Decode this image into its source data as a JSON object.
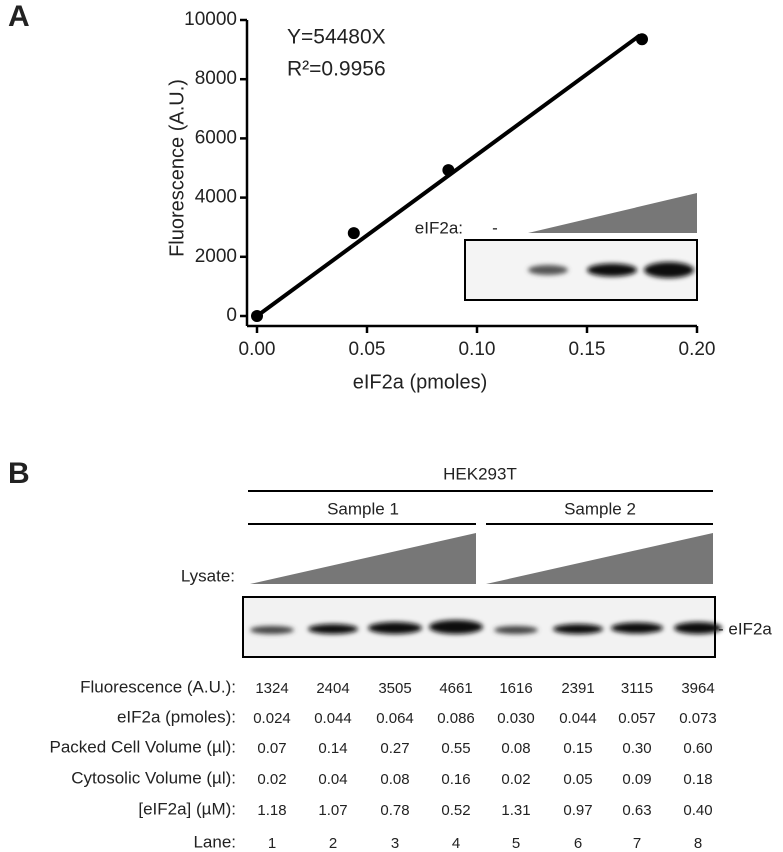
{
  "chart_data": {
    "type": "scatter",
    "panel_label": "A",
    "annotations": [
      "Y=54480X",
      "R²=0.9956"
    ],
    "x_label": "eIF2a (pmoles)",
    "y_label": "Fluorescence (A.U.)",
    "x": [
      0,
      0.044,
      0.087,
      0.175
    ],
    "values": [
      0,
      2800,
      4930,
      9350
    ],
    "color": "#000000",
    "fit": {
      "x": [
        0,
        0.174
      ],
      "y": [
        0,
        9480
      ]
    },
    "xlim": [
      0,
      0.2
    ],
    "xticks": [
      {
        "value": 0,
        "label": "0.00"
      },
      {
        "value": 0.05,
        "label": "0.05"
      },
      {
        "value": 0.1,
        "label": "0.10"
      },
      {
        "value": 0.15,
        "label": "0.15"
      },
      {
        "value": 0.2,
        "label": "0.20"
      }
    ],
    "ylim": [
      0,
      10000
    ],
    "yticks": [
      0,
      2000,
      4000,
      6000,
      8000,
      10000
    ],
    "grid": false,
    "inset": {
      "label": "eIF2a:",
      "minus": "-"
    }
  },
  "panel_b": {
    "panel_label": "B",
    "cell_line": "HEK293T",
    "samples": [
      "Sample 1",
      "Sample 2"
    ],
    "lysate_label": "Lysate:",
    "band_label": "- eIF2a",
    "table": {
      "rows": [
        {
          "label": "Fluorescence (A.U.):",
          "values": [
            "1324",
            "2404",
            "3505",
            "4661",
            "1616",
            "2391",
            "3115",
            "3964"
          ]
        },
        {
          "label": "eIF2a (pmoles):",
          "values": [
            "0.024",
            "0.044",
            "0.064",
            "0.086",
            "0.030",
            "0.044",
            "0.057",
            "0.073"
          ]
        },
        {
          "label": "Packed Cell Volume (µl):",
          "values": [
            "0.07",
            "0.14",
            "0.27",
            "0.55",
            "0.08",
            "0.15",
            "0.30",
            "0.60"
          ]
        },
        {
          "label": "Cytosolic Volume (µl):",
          "values": [
            "0.02",
            "0.04",
            "0.08",
            "0.16",
            "0.02",
            "0.05",
            "0.09",
            "0.18"
          ]
        },
        {
          "label": "[eIF2a] (µM):",
          "values": [
            "1.18",
            "1.07",
            "0.78",
            "0.52",
            "1.31",
            "0.97",
            "0.63",
            "0.40"
          ]
        },
        {
          "label": "Lane:",
          "values": [
            "1",
            "2",
            "3",
            "4",
            "5",
            "6",
            "7",
            "8"
          ]
        }
      ]
    }
  }
}
